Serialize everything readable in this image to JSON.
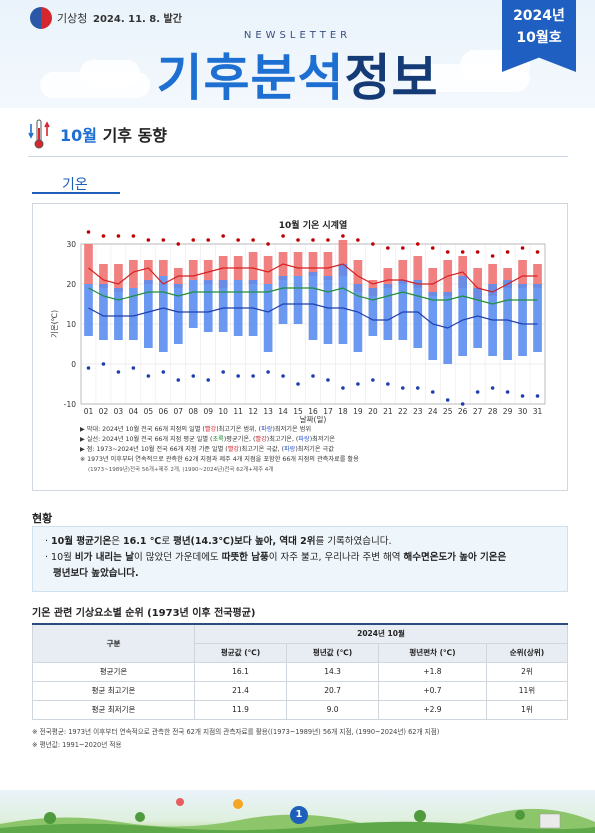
{
  "header": {
    "org": "기상청",
    "date": "2024. 11. 8. 발간",
    "newsletter": "NEWSLETTER",
    "title_part1": "기후분석",
    "title_part2": "정보",
    "ribbon_year": "2024년",
    "ribbon_month": "10월호"
  },
  "section": {
    "month": "10월",
    "title": "기후 동향",
    "tab": "기온"
  },
  "chart_data": {
    "type": "bar",
    "title": "10월 기온 시계열",
    "xlabel": "날짜(일)",
    "ylabel": "기온(℃)",
    "ylim": [
      -10,
      30
    ],
    "yticks": [
      -10,
      0,
      10,
      20,
      30
    ],
    "categories": [
      "01",
      "02",
      "03",
      "04",
      "05",
      "06",
      "07",
      "08",
      "09",
      "10",
      "11",
      "12",
      "13",
      "14",
      "15",
      "16",
      "17",
      "18",
      "19",
      "20",
      "21",
      "22",
      "23",
      "24",
      "25",
      "26",
      "27",
      "28",
      "29",
      "30",
      "31"
    ],
    "grid": true,
    "series": [
      {
        "name": "막대(최고기온 범위)",
        "color": "#f07272",
        "low": [
          20,
          19,
          18,
          19,
          20,
          22,
          19,
          21,
          20,
          19,
          21,
          20,
          20,
          21,
          22,
          22,
          21,
          22,
          18,
          17,
          19,
          20,
          19,
          17,
          17,
          19,
          16,
          17,
          19,
          19,
          19
        ],
        "high": [
          30,
          25,
          25,
          26,
          26,
          26,
          24,
          26,
          26,
          27,
          27,
          28,
          27,
          28,
          28,
          28,
          28,
          31,
          26,
          21,
          24,
          26,
          27,
          24,
          26,
          27,
          24,
          25,
          24,
          26,
          25
        ]
      },
      {
        "name": "막대(최저기온 범위)",
        "color": "#5b8def",
        "low": [
          7,
          6,
          6,
          6,
          4,
          3,
          5,
          9,
          8,
          8,
          7,
          7,
          3,
          10,
          10,
          6,
          5,
          5,
          3,
          7,
          6,
          6,
          4,
          1,
          0,
          2,
          4,
          2,
          1,
          2,
          3
        ],
        "high": [
          20,
          20,
          19,
          19,
          21,
          22,
          20,
          21,
          21,
          21,
          21,
          21,
          20,
          22,
          22,
          23,
          22,
          25,
          20,
          19,
          20,
          21,
          21,
          18,
          18,
          22,
          19,
          20,
          21,
          20,
          20
        ]
      },
      {
        "name": "실선(최고기온)",
        "color": "#d62020",
        "values": [
          24,
          21,
          20,
          23,
          24,
          20,
          22,
          22,
          23,
          24,
          24,
          24,
          23,
          25,
          24,
          24,
          24,
          25,
          22,
          20,
          21,
          21,
          20,
          20,
          22,
          23,
          19,
          18,
          20,
          22,
          22
        ]
      },
      {
        "name": "실선(평균기온)",
        "color": "#1f8f3a",
        "values": [
          19,
          17,
          16,
          17,
          18,
          18,
          17,
          18,
          18,
          18,
          18,
          18,
          18,
          19,
          19,
          19,
          18,
          19,
          17,
          16,
          17,
          18,
          17,
          16,
          16,
          17,
          16,
          15,
          16,
          16,
          16
        ]
      },
      {
        "name": "실선(최저기온)",
        "color": "#1f3fae",
        "values": [
          14,
          12,
          12,
          12,
          13,
          14,
          13,
          13,
          13,
          14,
          14,
          14,
          13,
          15,
          15,
          15,
          14,
          14,
          13,
          11,
          11,
          13,
          13,
          10,
          9,
          11,
          12,
          11,
          11,
          10,
          10
        ]
      },
      {
        "name": "점(최고기온 극값)",
        "color": "#c00000",
        "values": [
          33,
          32,
          32,
          32,
          31,
          31,
          30,
          31,
          31,
          32,
          31,
          31,
          30,
          32,
          31,
          31,
          31,
          32,
          31,
          30,
          29,
          29,
          30,
          29,
          28,
          28,
          28,
          27,
          28,
          29,
          28
        ]
      },
      {
        "name": "점(최저기온 극값)",
        "color": "#1f3fae",
        "values": [
          -1,
          0,
          -2,
          -1,
          -3,
          -2,
          -4,
          -3,
          -4,
          -2,
          -3,
          -3,
          -2,
          -3,
          -5,
          -3,
          -4,
          -6,
          -5,
          -4,
          -5,
          -6,
          -6,
          -7,
          -9,
          -10,
          -7,
          -6,
          -7,
          -8,
          -8
        ]
      }
    ]
  },
  "legend": {
    "l1_a": "막대: 2024년 10월 전국 66개 지점의 일별 (",
    "l1_r": "빨강",
    "l1_b_pre": ")최고기온 범위, (",
    "l1_b": "파랑",
    "l1_end": ")최저기온 범위",
    "l2_a": "실선: 2024년 10월 전국 66개 지점 평균 일별 (",
    "l2_g": "초록",
    "l2_mid": ")평균기온, (",
    "l2_r": "빨강",
    "l2_mid2": ")최고기온, (",
    "l2_b": "파랑",
    "l2_end": ")최저기온",
    "l3_a": "점: 1973~2024년 10월 전국 66개 지점 기준 일별 (",
    "l3_r": "빨강",
    "l3_mid": ")최고기온 극값, (",
    "l3_b": "파랑",
    "l3_end": ")최저기온 극값",
    "l4": "※ 1973년 이후부터 연속적으로 관측한 62개 지점과 제주 4개 지점을 포함한 66개 지점의 관측자료를 활용",
    "l5": "(1973~1989년)전국 56개+제주 2개, (1990~2024년)전국 62개+제주 4개"
  },
  "status": {
    "title": "현황",
    "p1_a": "10월 평균기온",
    "p1_b": "은 ",
    "p1_c": "16.1 ℃",
    "p1_d": "로 ",
    "p1_e": "평년(14.3℃)보다 높아, 역대 2위",
    "p1_f": "를 기록하였습니다.",
    "p2_a": "10월 ",
    "p2_b": "비가 내리는 날",
    "p2_c": "이 많았던 가운데에도 ",
    "p2_d": "따뜻한 남풍",
    "p2_e": "이 자주 불고, 우리나라 주변 해역 ",
    "p2_f": "해수면온도가 높아 기온은",
    "p2_g": "평년보다 높았습니다."
  },
  "table": {
    "title": "기온 관련 기상요소별 순위 (1973년 이후 전국평균)",
    "col_group": "구분",
    "col_year": "2024년 10월",
    "headers": [
      "평균값 (℃)",
      "평년값 (℃)",
      "평년편차 (℃)",
      "순위(상위)"
    ],
    "rows": [
      {
        "label": "평균기온",
        "cells": [
          "16.1",
          "14.3",
          "+1.8",
          "2위"
        ]
      },
      {
        "label": "평균 최고기온",
        "cells": [
          "21.4",
          "20.7",
          "+0.7",
          "11위"
        ]
      },
      {
        "label": "평균 최저기온",
        "cells": [
          "11.9",
          "9.0",
          "+2.9",
          "1위"
        ]
      }
    ]
  },
  "footnotes": {
    "f1": "※ 전국평균: 1973년 이후부터 연속적으로 관측한 전국 62개 지점의 관측자료를 활용((1973~1989년) 56개 지점, (1990~2024년) 62개 지점)",
    "f2": "※ 평년값: 1991~2020년 적용"
  },
  "page": {
    "number": "1"
  },
  "colors": {
    "accent": "#1d6fd2",
    "dark": "#153b76",
    "ribbon": "#1f5fc1"
  }
}
